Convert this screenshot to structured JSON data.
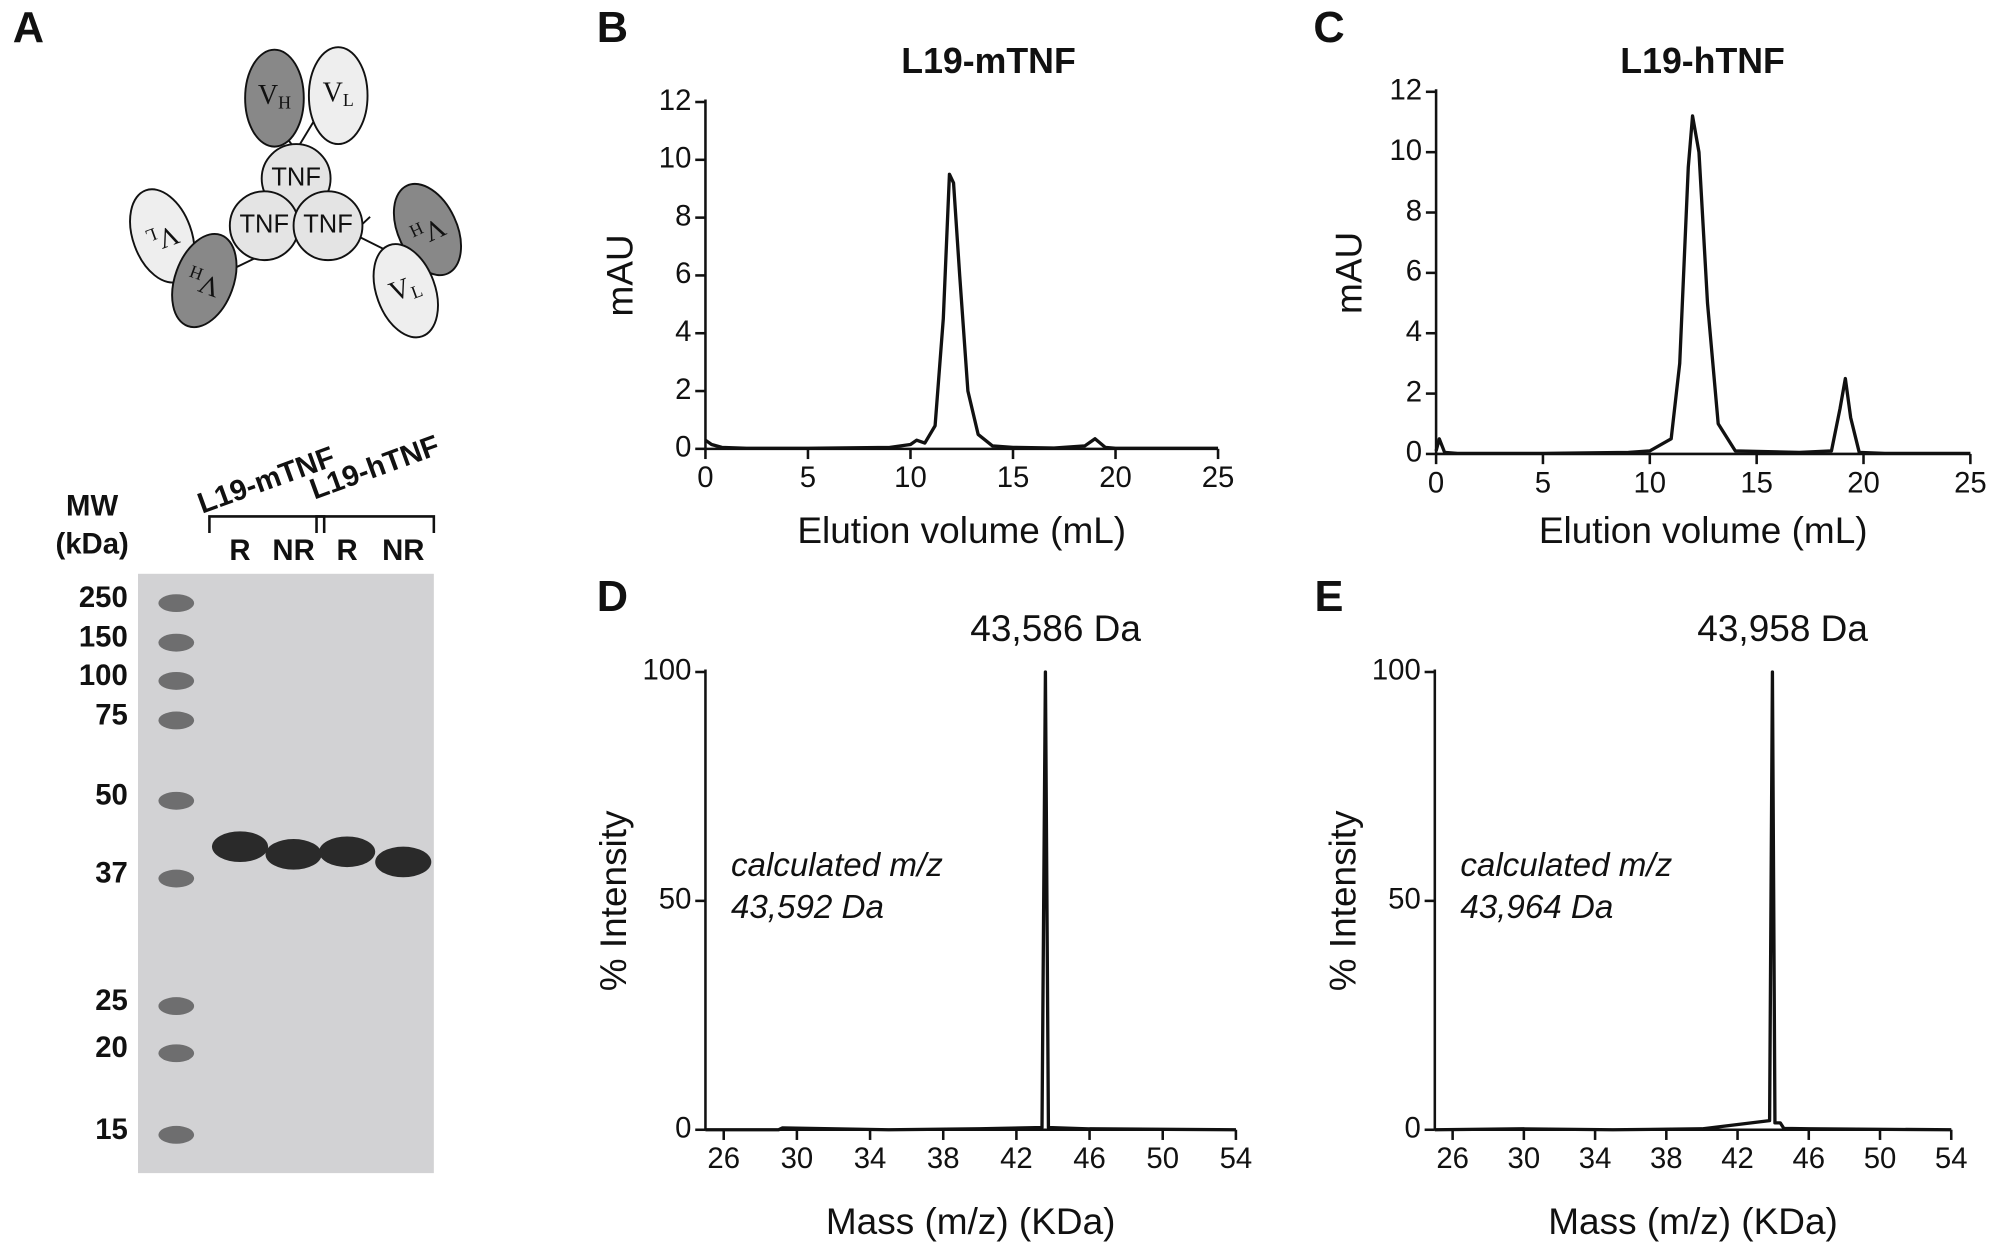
{
  "panel_a": {
    "label": "A",
    "diagram": {
      "tnf": [
        "TNF",
        "TNF",
        "TNF"
      ],
      "domains": [
        {
          "v": "V",
          "sub": "H"
        },
        {
          "v": "V",
          "sub": "L"
        },
        {
          "v": "V",
          "sub": "L"
        },
        {
          "v": "V",
          "sub": "H"
        },
        {
          "v": "V",
          "sub": "H"
        },
        {
          "v": "V",
          "sub": "L"
        }
      ]
    },
    "gel": {
      "mw_title": [
        "MW",
        "(kDa)"
      ],
      "mw_markers": [
        250,
        150,
        100,
        75,
        50,
        37,
        25,
        20,
        15
      ],
      "samples": [
        {
          "name": "L19-mTNF",
          "lanes": [
            "R",
            "NR"
          ]
        },
        {
          "name": "L19-hTNF",
          "lanes": [
            "R",
            "NR"
          ]
        }
      ]
    }
  },
  "chart_data": [
    {
      "type": "line",
      "label": "B",
      "title": "L19-mTNF",
      "x_label": "Elution volume (mL)",
      "y_label": "mAU",
      "color": "#111111",
      "x": [
        0,
        0.3,
        0.8,
        2,
        5,
        9,
        10,
        10.3,
        10.7,
        11.2,
        11.6,
        11.9,
        12.1,
        12.4,
        12.8,
        13.3,
        14,
        15,
        17,
        18.5,
        19,
        19.5,
        20,
        22,
        25
      ],
      "values": [
        0.3,
        0.15,
        0.05,
        0.02,
        0.02,
        0.05,
        0.15,
        0.3,
        0.2,
        0.8,
        4.5,
        9.5,
        9.2,
        6,
        2,
        0.5,
        0.1,
        0.05,
        0.03,
        0.1,
        0.35,
        0.05,
        0.02,
        0.02,
        0.02
      ],
      "xlim": [
        0,
        25
      ],
      "xticks": [
        0,
        5,
        10,
        15,
        20,
        25
      ],
      "ylim": [
        0,
        12
      ],
      "yticks": [
        0,
        2,
        4,
        6,
        8,
        10,
        12
      ]
    },
    {
      "type": "line",
      "label": "C",
      "title": "L19-hTNF",
      "x_label": "Elution volume (mL)",
      "y_label": "mAU",
      "color": "#111111",
      "x": [
        0,
        0.15,
        0.4,
        1,
        5,
        9,
        10,
        11,
        11.4,
        11.8,
        12,
        12.3,
        12.7,
        13.2,
        14,
        17,
        18.5,
        18.9,
        19.15,
        19.4,
        19.8,
        21,
        25
      ],
      "values": [
        0.1,
        0.5,
        0.05,
        0.02,
        0.02,
        0.05,
        0.1,
        0.5,
        3,
        9.5,
        11.2,
        10,
        5,
        1,
        0.1,
        0.05,
        0.1,
        1.5,
        2.5,
        1.2,
        0.05,
        0.02,
        0.02
      ],
      "xlim": [
        0,
        25
      ],
      "xticks": [
        0,
        5,
        10,
        15,
        20,
        25
      ],
      "ylim": [
        0,
        12
      ],
      "yticks": [
        0,
        2,
        4,
        6,
        8,
        10,
        12
      ]
    },
    {
      "type": "line",
      "label": "D",
      "x_label": "Mass (m/z) (KDa)",
      "y_label": "% Intensity",
      "color": "#111111",
      "peak_label": "43,586 Da",
      "annotation": [
        "calculated m/z",
        "43,592 Da"
      ],
      "x": [
        25,
        29,
        29.2,
        35,
        40,
        43.4,
        43.586,
        43.75,
        46,
        54
      ],
      "values": [
        0,
        0,
        0.4,
        0,
        0.2,
        0.5,
        100,
        0.5,
        0.2,
        0
      ],
      "xlim": [
        25,
        54
      ],
      "xticks": [
        26,
        30,
        34,
        38,
        42,
        46,
        50,
        54
      ],
      "ylim": [
        0,
        100
      ],
      "yticks": [
        0,
        50,
        100
      ]
    },
    {
      "type": "line",
      "label": "E",
      "x_label": "Mass (m/z) (KDa)",
      "y_label": "% Intensity",
      "color": "#111111",
      "peak_label": "43,958 Da",
      "annotation": [
        "calculated m/z",
        "43,964 Da"
      ],
      "x": [
        25,
        30,
        35,
        40,
        43.8,
        43.958,
        44.1,
        44.4,
        44.6,
        46,
        54
      ],
      "values": [
        0,
        0.2,
        0,
        0.2,
        2,
        100,
        1.5,
        1.5,
        0.3,
        0.2,
        0
      ],
      "xlim": [
        25,
        54
      ],
      "xticks": [
        26,
        30,
        34,
        38,
        42,
        46,
        50,
        54
      ],
      "ylim": [
        0,
        100
      ],
      "yticks": [
        0,
        50,
        100
      ]
    }
  ]
}
